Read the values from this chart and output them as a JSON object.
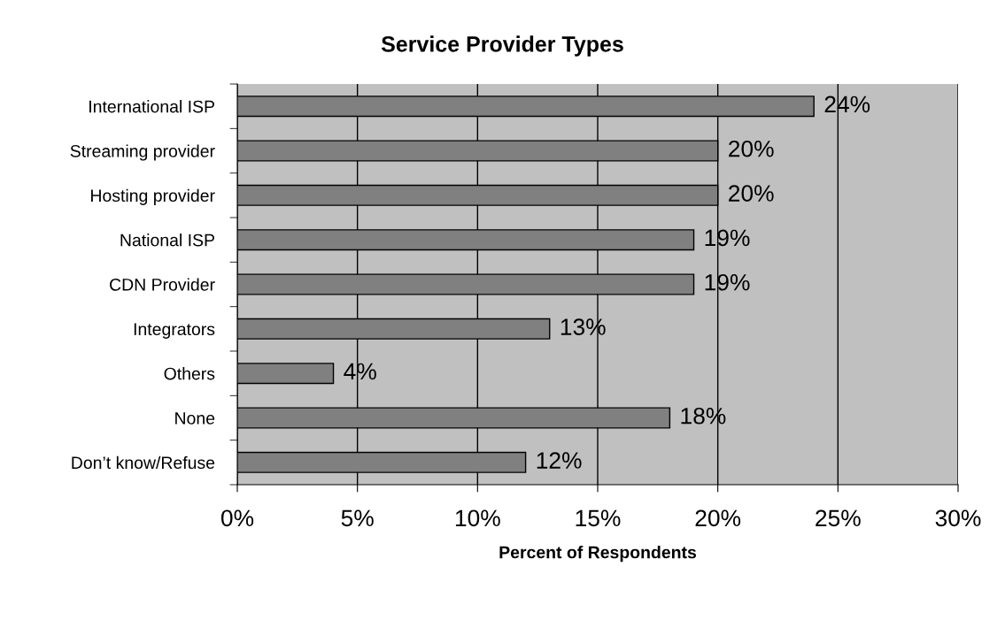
{
  "chart_data": {
    "type": "bar",
    "orientation": "horizontal",
    "title": "Service Provider Types",
    "xlabel": "Percent of Respondents",
    "categories": [
      "International ISP",
      "Streaming provider",
      "Hosting provider",
      "National ISP",
      "CDN Provider",
      "Integrators",
      "Others",
      "None",
      "Don’t know/Refuse"
    ],
    "values": [
      24,
      20,
      20,
      19,
      19,
      13,
      4,
      18,
      12
    ],
    "value_labels": [
      "24%",
      "20%",
      "20%",
      "19%",
      "19%",
      "13%",
      "4%",
      "18%",
      "12%"
    ],
    "color": "#808080",
    "xlim": [
      0,
      30
    ],
    "xticks": [
      {
        "value": 0,
        "label": "0%"
      },
      {
        "value": 5,
        "label": "5%"
      },
      {
        "value": 10,
        "label": "10%"
      },
      {
        "value": 15,
        "label": "15%"
      },
      {
        "value": 20,
        "label": "20%"
      },
      {
        "value": 25,
        "label": "25%"
      },
      {
        "value": 30,
        "label": "30%"
      }
    ],
    "grid": "x"
  }
}
